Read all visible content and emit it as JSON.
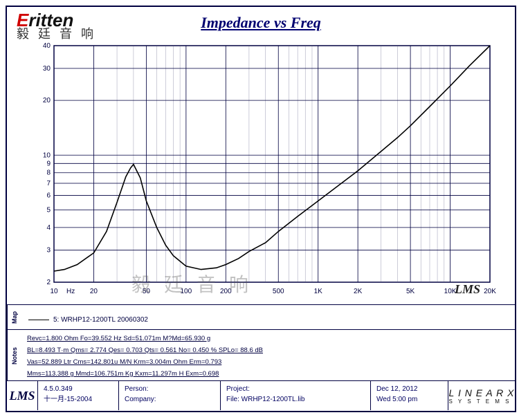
{
  "title": "Impedance vs Freq",
  "logo": {
    "main_red": "E",
    "main_rest": "ritten",
    "sub": "毅 廷 音 响"
  },
  "watermark": "毅 廷 音 响",
  "chart": {
    "type": "line-loglog",
    "xlabel_unit": "Hz",
    "x_ticks": [
      10,
      20,
      50,
      100,
      200,
      500,
      "1K",
      "2K",
      "5K",
      "10K",
      "20K"
    ],
    "x_tick_vals": [
      10,
      20,
      50,
      100,
      200,
      500,
      1000,
      2000,
      5000,
      10000,
      20000
    ],
    "y_ticks": [
      2,
      3,
      4,
      5,
      6,
      7,
      8,
      9,
      10,
      20,
      30,
      40
    ],
    "y_tick_vals": [
      2,
      3,
      4,
      5,
      6,
      7,
      8,
      9,
      10,
      20,
      30,
      40
    ],
    "xlim": [
      10,
      20000
    ],
    "ylim": [
      2,
      40
    ],
    "grid_color": "#000040",
    "minor_grid_color": "#8080a0",
    "line_color": "#000000",
    "line_width": 1.6,
    "bg_color": "#ffffff",
    "axis_font": 10,
    "corner_label": "LMS",
    "series": {
      "name": "5: WRHP12-1200TL 20060302",
      "freq": [
        10,
        12,
        15,
        20,
        25,
        30,
        35,
        38,
        40,
        45,
        50,
        60,
        70,
        80,
        100,
        130,
        170,
        200,
        250,
        300,
        400,
        500,
        700,
        1000,
        1500,
        2000,
        3000,
        4000,
        5000,
        7000,
        10000,
        14000,
        20000
      ],
      "imp": [
        2.3,
        2.35,
        2.5,
        2.9,
        3.8,
        5.5,
        7.6,
        8.5,
        8.9,
        7.5,
        5.6,
        4.0,
        3.2,
        2.8,
        2.45,
        2.35,
        2.4,
        2.5,
        2.7,
        2.95,
        3.3,
        3.8,
        4.6,
        5.6,
        7.0,
        8.2,
        10.5,
        12.5,
        14.5,
        18.5,
        24,
        31,
        40
      ]
    }
  },
  "legend": {
    "label": "Map",
    "text": "5: WRHP12-1200TL 20060302"
  },
  "notes": {
    "label": "Notes",
    "lines": [
      "Revc=1.800 Ohm  Fo=39.552 Hz  Sd=51.071m M?Md=65.930 g",
      "BL=8.493 T·m  Qms= 2.774  Qes= 0.703  Qts= 0.561  No= 0.450 %  SPLo=  88.6 dB",
      "Vas=52.889 Ltr  Cms=142.801u M/N  Krm=3.004m Ohm  Erm=0.793",
      "Mms=113.388 g  Mmd=106.751m Kg  Kxm=11.297m H  Exm=0.698"
    ]
  },
  "footer": {
    "lms": "LMS",
    "version_l1": "4.5.0.349",
    "version_l2": "十一月-15-2004",
    "person_l1": "Person:",
    "person_l2": "Company:",
    "project_l1": "Project:",
    "project_l2": "File: WRHP12-1200TL.lib",
    "date_l1": "Dec 12, 2012",
    "date_l2": "Wed  5:00 pm",
    "linearx_main": "L I N E A R X",
    "linearx_sub": "S Y S T E M S"
  }
}
